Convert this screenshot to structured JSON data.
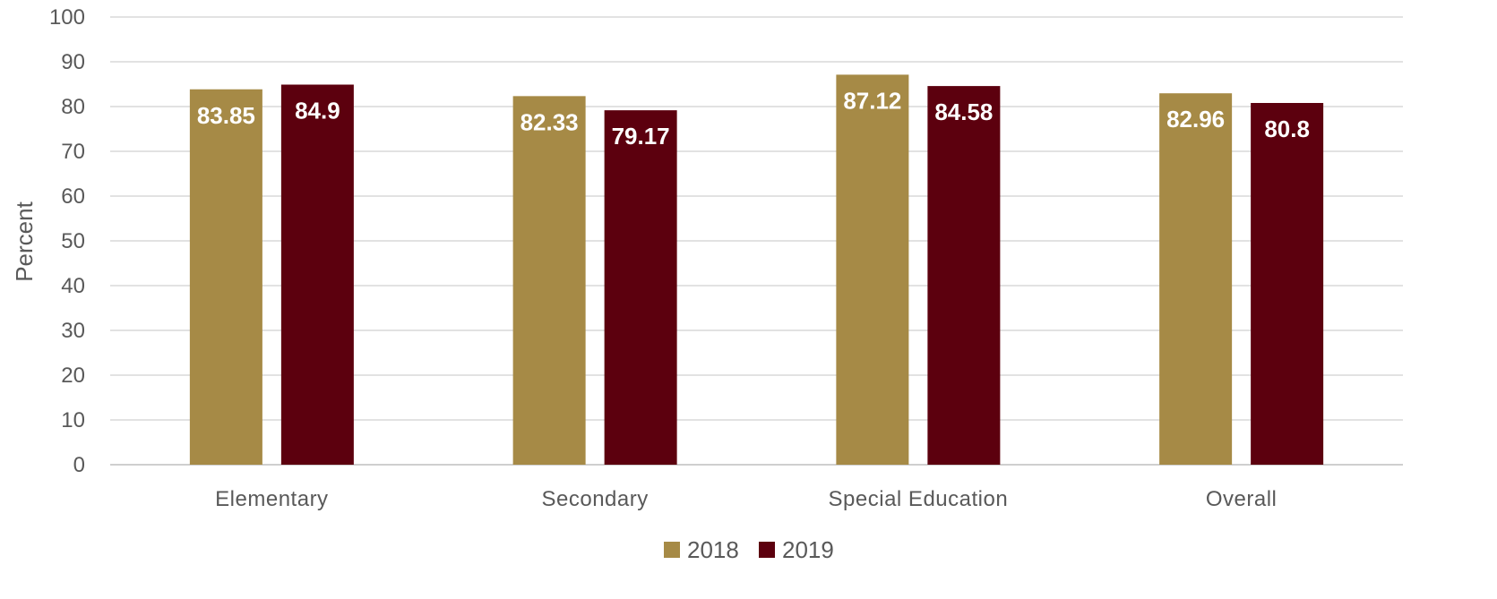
{
  "chart_data": {
    "type": "bar",
    "title": "",
    "xlabel": "",
    "ylabel": "Percent",
    "ylim": [
      0,
      100
    ],
    "yticks": [
      0,
      10,
      20,
      30,
      40,
      50,
      60,
      70,
      80,
      90,
      100
    ],
    "grid": true,
    "legend_position": "bottom",
    "categories": [
      "Elementary",
      "Secondary",
      "Special Education",
      "Overall"
    ],
    "series": [
      {
        "name": "2018",
        "color": "#A68A46",
        "values": [
          83.85,
          82.33,
          87.12,
          82.96
        ]
      },
      {
        "name": "2019",
        "color": "#5C000E",
        "values": [
          84.9,
          79.17,
          84.58,
          80.8
        ]
      }
    ]
  }
}
